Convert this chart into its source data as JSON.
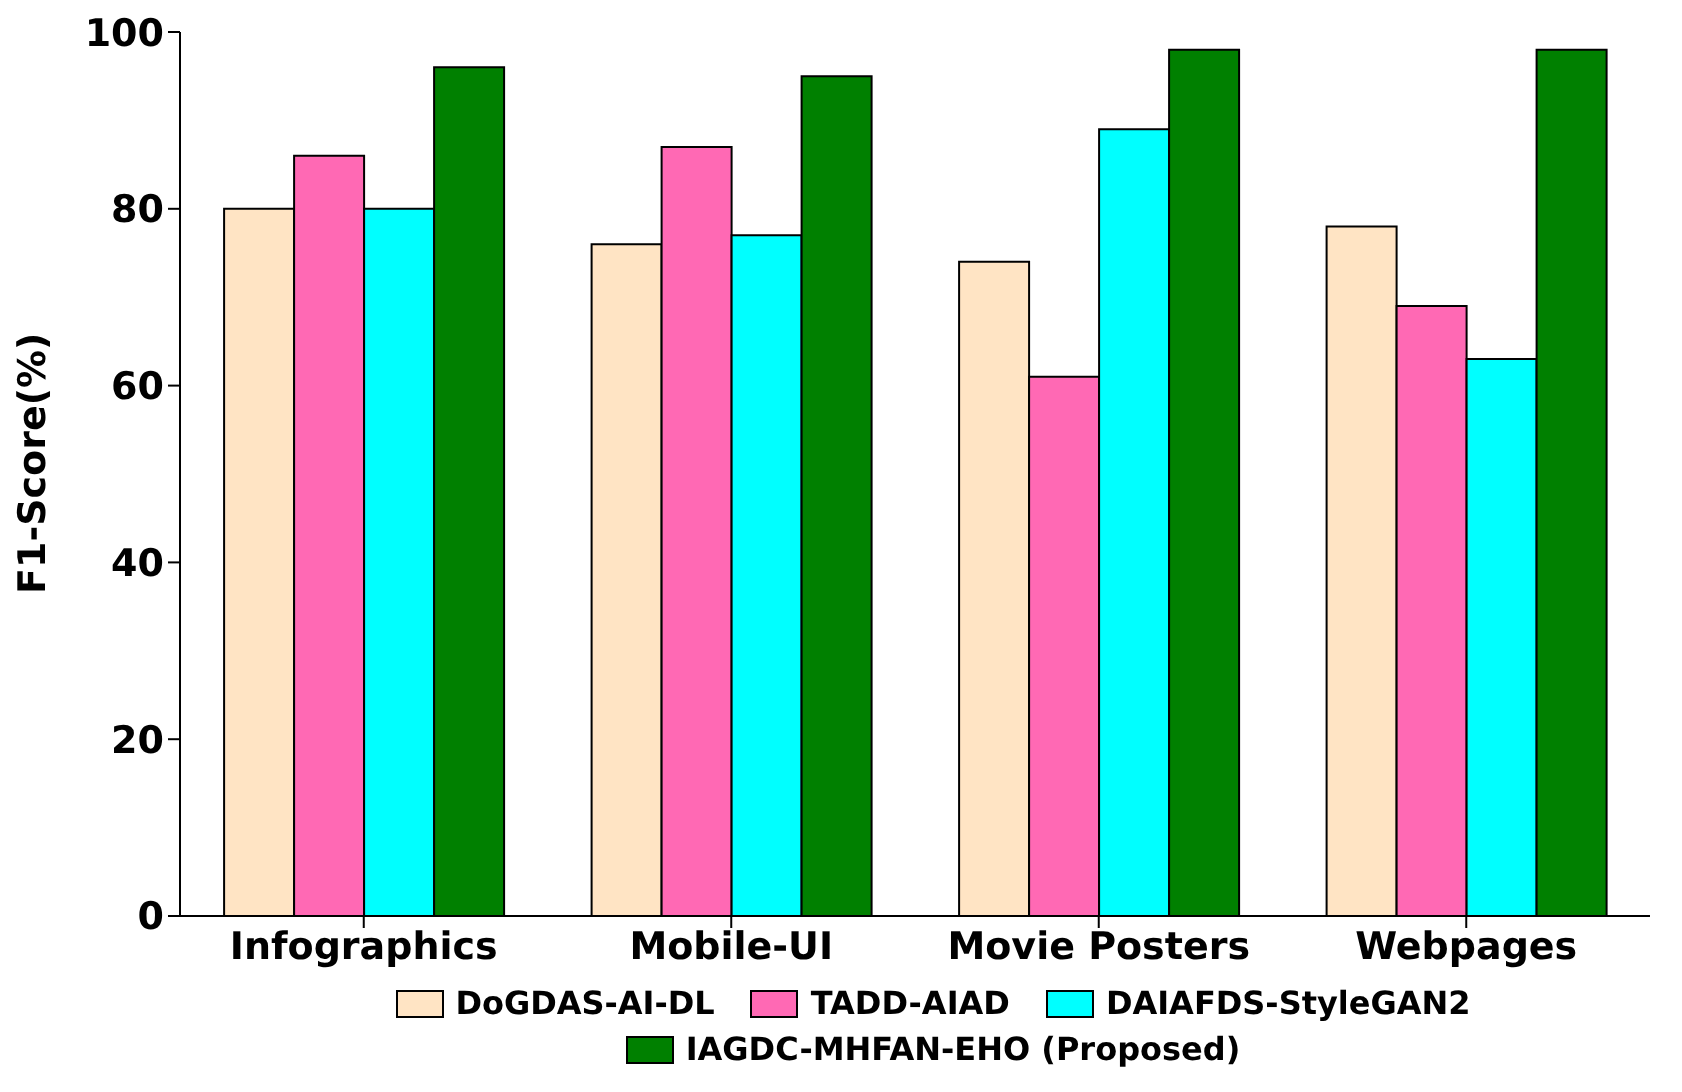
{
  "chart_data": {
    "type": "bar",
    "ylabel": "F1-Score(%)",
    "categories": [
      "Infographics",
      "Mobile-UI",
      "Movie Posters",
      "Webpages"
    ],
    "series": [
      {
        "name": "DoGDAS-AI-DL",
        "color": "#ffe4c4",
        "values": [
          80,
          76,
          74,
          78
        ]
      },
      {
        "name": "TADD-AIAD",
        "color": "#ff69b4",
        "values": [
          86,
          87,
          61,
          69
        ]
      },
      {
        "name": "DAIAFDS-StyleGAN2",
        "color": "#00ffff",
        "values": [
          80,
          77,
          89,
          63
        ]
      },
      {
        "name": "IAGDC-MHFAN-EHO (Proposed)",
        "color": "#008000",
        "values": [
          96,
          95,
          98,
          98
        ]
      }
    ],
    "ylim": [
      0,
      100
    ],
    "yticks": [
      0,
      20,
      40,
      60,
      80,
      100
    ],
    "grid": false,
    "legend": "bottom"
  }
}
